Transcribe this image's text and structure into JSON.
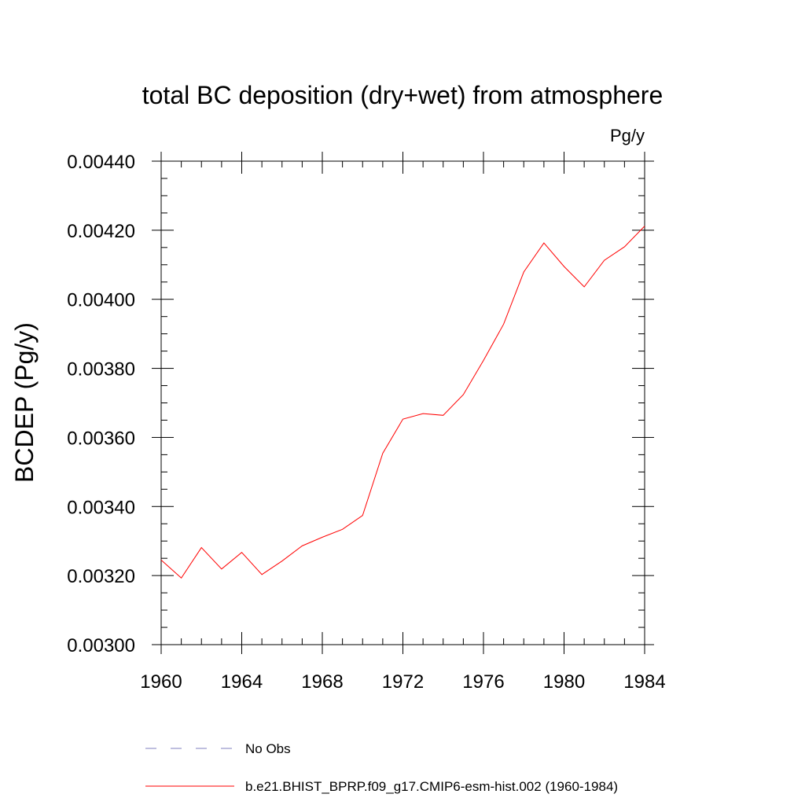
{
  "chart_data": {
    "type": "line",
    "title": "total BC deposition (dry+wet) from atmosphere",
    "units_label": "Pg/y",
    "ylabel": "BCDEP  (Pg/y)",
    "xlabel": "",
    "xlim": [
      1960,
      1984
    ],
    "ylim": [
      0.003,
      0.0044
    ],
    "x_ticks": [
      "1960",
      "1964",
      "1968",
      "1972",
      "1976",
      "1980",
      "1984"
    ],
    "y_ticks": [
      "0.00300",
      "0.00320",
      "0.00340",
      "0.00360",
      "0.00380",
      "0.00400",
      "0.00420",
      "0.00440"
    ],
    "grid": false,
    "legend_position": "bottom",
    "series": [
      {
        "name": "b.e21.BHIST_BPRP.f09_g17.CMIP6-esm-hist.002 (1960-1984)",
        "color": "#ff0000",
        "dash": "solid",
        "x": [
          1960,
          1961,
          1962,
          1963,
          1964,
          1965,
          1966,
          1967,
          1968,
          1969,
          1970,
          1971,
          1972,
          1973,
          1974,
          1975,
          1976,
          1977,
          1978,
          1979,
          1980,
          1981,
          1982,
          1983,
          1984
        ],
        "values": [
          0.003245,
          0.003193,
          0.003281,
          0.003219,
          0.003267,
          0.003203,
          0.003242,
          0.003286,
          0.003311,
          0.003334,
          0.003374,
          0.003554,
          0.003653,
          0.003669,
          0.003664,
          0.003724,
          0.003823,
          0.003928,
          0.004079,
          0.004163,
          0.004095,
          0.004036,
          0.004113,
          0.004152,
          0.004212
        ]
      }
    ],
    "legend": [
      {
        "label": "No Obs",
        "color": "#7f7fbf",
        "dash": "dashed"
      },
      {
        "label": "b.e21.BHIST_BPRP.f09_g17.CMIP6-esm-hist.002 (1960-1984)",
        "color": "#ff0000",
        "dash": "solid"
      }
    ]
  }
}
